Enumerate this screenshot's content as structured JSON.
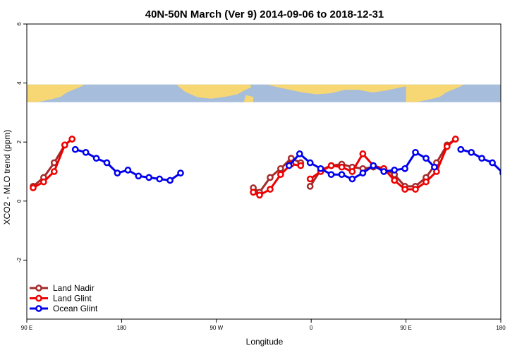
{
  "chart_data": {
    "type": "line",
    "title": "40N-50N March (Ver 9)   2014-09-06 to 2018-12-31",
    "xlabel": "Longitude",
    "ylabel": "XCO2 - MLO trend (ppm)",
    "xlim": [
      90,
      540
    ],
    "ylim": [
      -4,
      6
    ],
    "x_axis": {
      "ticks": [
        90,
        180,
        270,
        360,
        450,
        540
      ],
      "tick_labels": [
        "90 E",
        "180",
        "90 W",
        "0",
        "90 E",
        "180"
      ]
    },
    "y_axis": {
      "ticks": [
        6,
        4,
        2,
        0,
        -2
      ],
      "tick_labels": [
        "6",
        "4",
        "2",
        "0",
        "-2"
      ]
    },
    "map_strip": {
      "y_range": [
        3.35,
        3.95
      ],
      "ocean_color": "#a6bddb",
      "land_color": "#f7d774"
    },
    "legend": {
      "position": "bottom-left"
    },
    "series": [
      {
        "name": "Land Nadir",
        "color": "#a52a2a",
        "segments": [
          [
            [
              96,
              0.5
            ],
            [
              106,
              0.8
            ],
            [
              116,
              1.3
            ],
            [
              126,
              1.9
            ],
            [
              133,
              2.1
            ]
          ],
          [
            [
              305,
              0.45
            ],
            [
              311,
              0.3
            ],
            [
              321,
              0.8
            ],
            [
              331,
              1.1
            ],
            [
              341,
              1.45
            ],
            [
              350,
              1.3
            ]
          ],
          [
            [
              359,
              0.5
            ],
            [
              369,
              1.05
            ],
            [
              379,
              1.2
            ],
            [
              389,
              1.25
            ],
            [
              399,
              1.15
            ],
            [
              409,
              1.1
            ],
            [
              419,
              1.15
            ],
            [
              429,
              1.1
            ],
            [
              439,
              0.9
            ],
            [
              449,
              0.5
            ],
            [
              459,
              0.5
            ],
            [
              469,
              0.8
            ],
            [
              479,
              1.3
            ],
            [
              489,
              1.9
            ],
            [
              497,
              2.1
            ]
          ]
        ]
      },
      {
        "name": "Land Glint",
        "color": "#ee0000",
        "segments": [
          [
            [
              96,
              0.45
            ],
            [
              106,
              0.65
            ],
            [
              116,
              1.0
            ],
            [
              126,
              1.9
            ],
            [
              133,
              2.1
            ]
          ],
          [
            [
              305,
              0.3
            ],
            [
              311,
              0.2
            ],
            [
              321,
              0.4
            ],
            [
              331,
              0.9
            ],
            [
              341,
              1.25
            ],
            [
              350,
              1.2
            ]
          ],
          [
            [
              359,
              0.75
            ],
            [
              369,
              1.0
            ],
            [
              379,
              1.2
            ],
            [
              389,
              1.15
            ],
            [
              399,
              1.0
            ],
            [
              409,
              1.6
            ],
            [
              419,
              1.2
            ],
            [
              429,
              1.1
            ],
            [
              439,
              0.7
            ],
            [
              449,
              0.4
            ],
            [
              459,
              0.4
            ],
            [
              469,
              0.65
            ],
            [
              479,
              1.0
            ],
            [
              489,
              1.85
            ],
            [
              497,
              2.1
            ]
          ]
        ]
      },
      {
        "name": "Ocean Glint",
        "color": "#0000ee",
        "segments": [
          [
            [
              136,
              1.75
            ],
            [
              146,
              1.65
            ],
            [
              156,
              1.45
            ],
            [
              166,
              1.3
            ],
            [
              176,
              0.95
            ],
            [
              186,
              1.05
            ],
            [
              196,
              0.85
            ],
            [
              206,
              0.8
            ],
            [
              216,
              0.75
            ],
            [
              226,
              0.7
            ],
            [
              236,
              0.95
            ]
          ],
          [
            [
              339,
              1.2
            ],
            [
              349,
              1.6
            ],
            [
              359,
              1.3
            ],
            [
              369,
              1.1
            ],
            [
              379,
              0.9
            ],
            [
              389,
              0.9
            ],
            [
              399,
              0.75
            ],
            [
              409,
              0.95
            ],
            [
              419,
              1.2
            ],
            [
              429,
              1.0
            ],
            [
              439,
              1.05
            ],
            [
              449,
              1.1
            ],
            [
              459,
              1.65
            ],
            [
              469,
              1.45
            ],
            [
              477,
              1.15
            ]
          ],
          [
            [
              502,
              1.75
            ],
            [
              512,
              1.65
            ],
            [
              522,
              1.45
            ],
            [
              532,
              1.3
            ],
            [
              542,
              0.95
            ]
          ]
        ]
      }
    ]
  }
}
